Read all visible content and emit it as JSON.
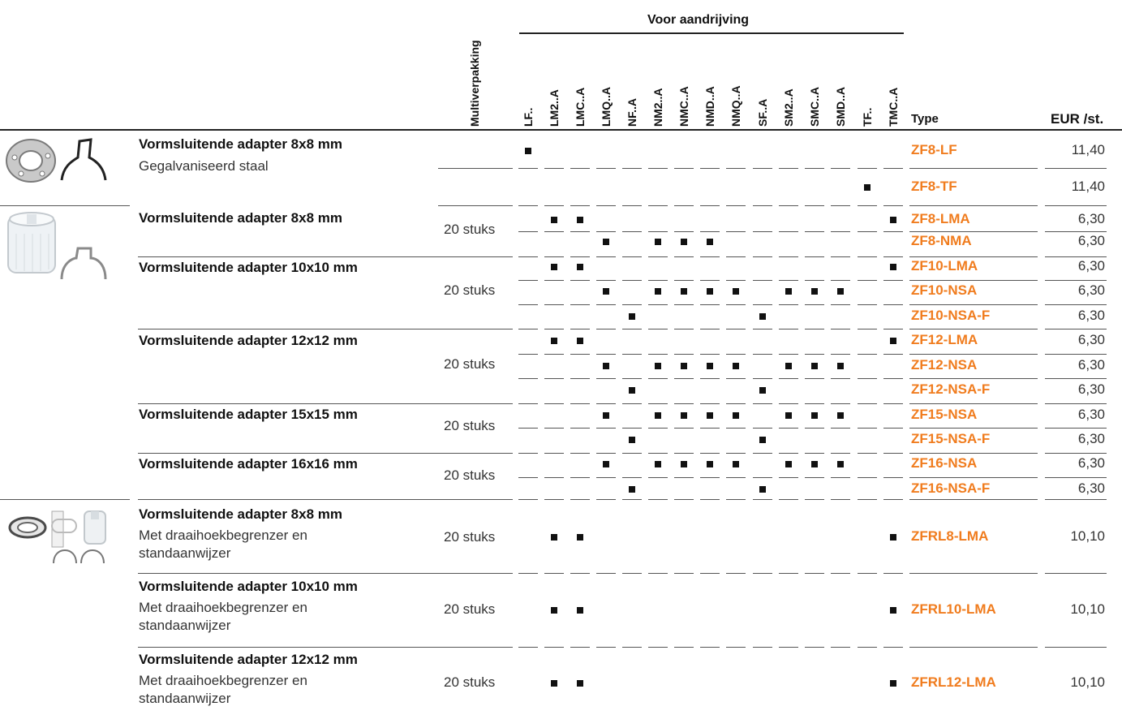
{
  "header": {
    "multipack_label": "Multiverpakking",
    "group_label": "Voor aandrijving",
    "drives": [
      "LF..",
      "LM2..A",
      "LMC..A",
      "LMQ..A",
      "NF..A",
      "NM2..A",
      "NMC..A",
      "NMD..A",
      "NMQ..A",
      "SF..A",
      "SM2..A",
      "SMC..A",
      "SMD..A",
      "TF..",
      "TMC..A"
    ],
    "type_label": "Type",
    "price_label": "EUR /st."
  },
  "colors": {
    "accent": "#f07c1e",
    "text": "#222222",
    "rule": "#555555"
  },
  "products": [
    {
      "title": "Vormsluitende adapter 8x8 mm",
      "subtitle": "Gegalvaniseerd staal",
      "pack": ""
    },
    {
      "title": "Vormsluitende adapter 8x8 mm",
      "subtitle": "",
      "pack": "20 stuks"
    },
    {
      "title": "Vormsluitende adapter 10x10 mm",
      "subtitle": "",
      "pack": "20 stuks"
    },
    {
      "title": "Vormsluitende adapter 12x12 mm",
      "subtitle": "",
      "pack": "20 stuks"
    },
    {
      "title": "Vormsluitende adapter 15x15 mm",
      "subtitle": "",
      "pack": "20 stuks"
    },
    {
      "title": "Vormsluitende adapter 16x16 mm",
      "subtitle": "",
      "pack": "20 stuks"
    },
    {
      "title": "Vormsluitende adapter 8x8 mm",
      "subtitle": "Met draaihoekbegrenzer en standaanwijzer",
      "pack": "20 stuks"
    },
    {
      "title": "Vormsluitende adapter 10x10 mm",
      "subtitle": "Met draaihoekbegrenzer en standaanwijzer",
      "pack": "20 stuks"
    },
    {
      "title": "Vormsluitende adapter 12x12 mm",
      "subtitle": "Met draaihoekbegrenzer en standaanwijzer",
      "pack": "20 stuks"
    }
  ],
  "rows": [
    {
      "type": "ZF8-LF",
      "price": "11,40",
      "drives": [
        "LF.."
      ]
    },
    {
      "type": "ZF8-TF",
      "price": "11,40",
      "drives": [
        "TF.."
      ]
    },
    {
      "type": "ZF8-LMA",
      "price": "6,30",
      "drives": [
        "LM2..A",
        "LMC..A",
        "TMC..A"
      ]
    },
    {
      "type": "ZF8-NMA",
      "price": "6,30",
      "drives": [
        "LMQ..A",
        "NM2..A",
        "NMC..A",
        "NMD..A"
      ]
    },
    {
      "type": "ZF10-LMA",
      "price": "6,30",
      "drives": [
        "LM2..A",
        "LMC..A",
        "TMC..A"
      ]
    },
    {
      "type": "ZF10-NSA",
      "price": "6,30",
      "drives": [
        "LMQ..A",
        "NM2..A",
        "NMC..A",
        "NMD..A",
        "NMQ..A",
        "SM2..A",
        "SMC..A",
        "SMD..A"
      ]
    },
    {
      "type": "ZF10-NSA-F",
      "price": "6,30",
      "drives": [
        "NF..A",
        "SF..A"
      ]
    },
    {
      "type": "ZF12-LMA",
      "price": "6,30",
      "drives": [
        "LM2..A",
        "LMC..A",
        "TMC..A"
      ]
    },
    {
      "type": "ZF12-NSA",
      "price": "6,30",
      "drives": [
        "LMQ..A",
        "NM2..A",
        "NMC..A",
        "NMD..A",
        "NMQ..A",
        "SM2..A",
        "SMC..A",
        "SMD..A"
      ]
    },
    {
      "type": "ZF12-NSA-F",
      "price": "6,30",
      "drives": [
        "NF..A",
        "SF..A"
      ]
    },
    {
      "type": "ZF15-NSA",
      "price": "6,30",
      "drives": [
        "LMQ..A",
        "NM2..A",
        "NMC..A",
        "NMD..A",
        "NMQ..A",
        "SM2..A",
        "SMC..A",
        "SMD..A"
      ]
    },
    {
      "type": "ZF15-NSA-F",
      "price": "6,30",
      "drives": [
        "NF..A",
        "SF..A"
      ]
    },
    {
      "type": "ZF16-NSA",
      "price": "6,30",
      "drives": [
        "LMQ..A",
        "NM2..A",
        "NMC..A",
        "NMD..A",
        "NMQ..A",
        "SM2..A",
        "SMC..A",
        "SMD..A"
      ]
    },
    {
      "type": "ZF16-NSA-F",
      "price": "6,30",
      "drives": [
        "NF..A",
        "SF..A"
      ]
    },
    {
      "type": "ZFRL8-LMA",
      "price": "10,10",
      "drives": [
        "LM2..A",
        "LMC..A",
        "TMC..A"
      ]
    },
    {
      "type": "ZFRL10-LMA",
      "price": "10,10",
      "drives": [
        "LM2..A",
        "LMC..A",
        "TMC..A"
      ]
    },
    {
      "type": "ZFRL12-LMA",
      "price": "10,10",
      "drives": [
        "LM2..A",
        "LMC..A",
        "TMC..A"
      ]
    }
  ]
}
